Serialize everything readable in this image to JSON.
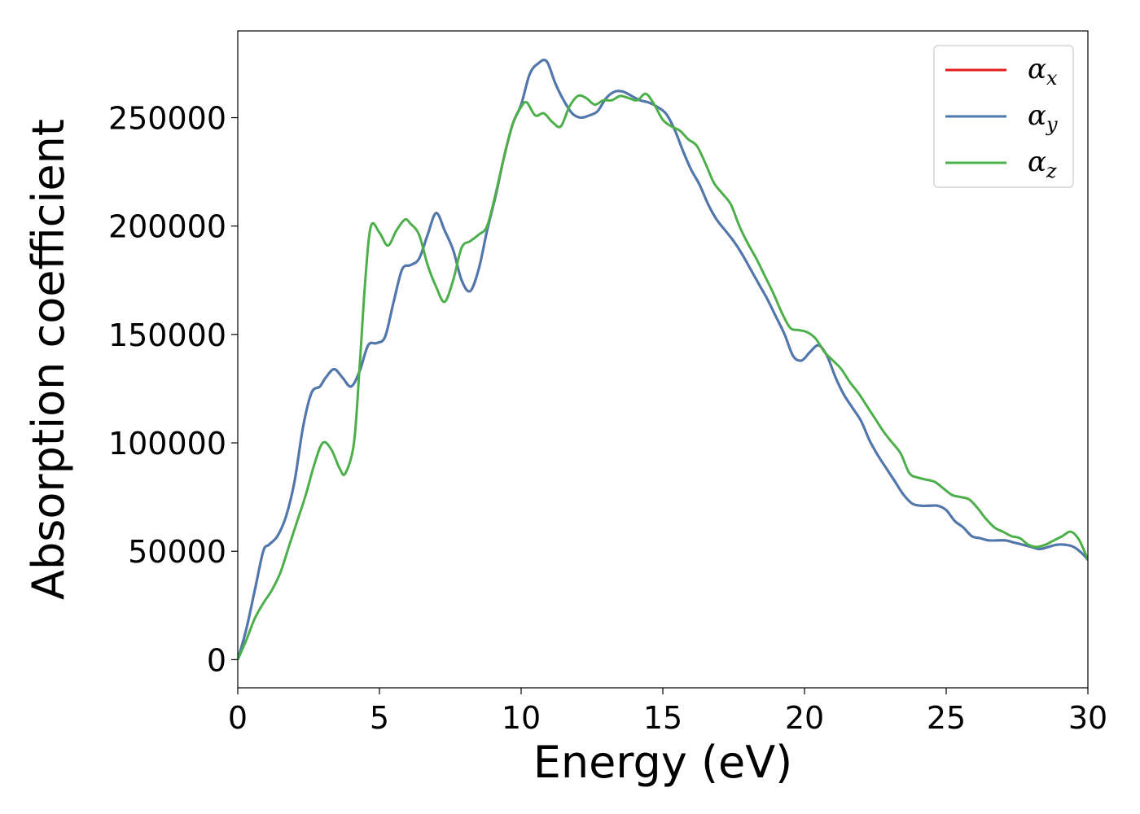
{
  "chart_data": {
    "type": "line",
    "title": "",
    "xlabel": "Energy (eV)",
    "ylabel": "Absorption coefficient",
    "xlim": [
      0,
      30
    ],
    "ylim": [
      -13000,
      290000
    ],
    "xticks": [
      0,
      5,
      10,
      15,
      20,
      25,
      30
    ],
    "yticks": [
      0,
      50000,
      100000,
      150000,
      200000,
      250000
    ],
    "grid": false,
    "legend_position": "top-right",
    "series": [
      {
        "name": "α",
        "subscript": "x",
        "color": "#e41a1c",
        "x": [
          0,
          0.3,
          0.6,
          0.9,
          1.1,
          1.4,
          1.7,
          2.0,
          2.3,
          2.6,
          2.9,
          3.1,
          3.4,
          3.7,
          4.0,
          4.3,
          4.6,
          4.9,
          5.2,
          5.5,
          5.8,
          6.1,
          6.4,
          6.7,
          7.0,
          7.3,
          7.6,
          7.9,
          8.2,
          8.5,
          8.8,
          9.1,
          9.4,
          9.7,
          10.0,
          10.3,
          10.6,
          10.9,
          11.2,
          11.5,
          11.8,
          12.1,
          12.4,
          12.7,
          13.0,
          13.3,
          13.6,
          13.9,
          14.2,
          14.5,
          14.8,
          15.1,
          15.4,
          15.7,
          16.0,
          16.3,
          16.6,
          16.9,
          17.2,
          17.5,
          17.8,
          18.1,
          18.4,
          18.7,
          19.0,
          19.3,
          19.6,
          19.9,
          20.2,
          20.5,
          20.8,
          21.1,
          21.4,
          21.7,
          22.0,
          22.3,
          22.6,
          22.9,
          23.2,
          23.5,
          23.8,
          24.1,
          24.4,
          24.7,
          25.0,
          25.3,
          25.6,
          25.9,
          26.2,
          26.5,
          26.8,
          27.1,
          27.4,
          27.7,
          28.0,
          28.3,
          28.6,
          28.9,
          29.2,
          29.5,
          29.8,
          30.0
        ],
        "y": [
          0,
          14000,
          32000,
          50000,
          53000,
          57000,
          66000,
          82000,
          107000,
          123000,
          126000,
          130000,
          134000,
          130000,
          126000,
          133000,
          145000,
          146000,
          149000,
          165000,
          180000,
          182000,
          185000,
          196000,
          206000,
          198000,
          189000,
          175000,
          170000,
          180000,
          198000,
          214000,
          232000,
          247000,
          256000,
          270000,
          275000,
          276000,
          266000,
          258000,
          252000,
          250000,
          251000,
          253000,
          259000,
          262000,
          262000,
          260000,
          258000,
          257000,
          255000,
          252000,
          245000,
          235000,
          226000,
          219000,
          210000,
          203000,
          198000,
          193000,
          187000,
          180000,
          173000,
          166000,
          158000,
          150000,
          140000,
          138000,
          142000,
          145000,
          140000,
          130000,
          122000,
          116000,
          110000,
          101000,
          94000,
          88000,
          82000,
          76000,
          72000,
          71000,
          71000,
          71000,
          69000,
          64000,
          61000,
          57000,
          56000,
          55000,
          55000,
          55000,
          54000,
          53000,
          52000,
          51000,
          52000,
          53000,
          53000,
          52000,
          49000,
          46000
        ]
      },
      {
        "name": "α",
        "subscript": "y",
        "color": "#4a7ab0",
        "x": [
          0,
          0.3,
          0.6,
          0.9,
          1.1,
          1.4,
          1.7,
          2.0,
          2.3,
          2.6,
          2.9,
          3.1,
          3.4,
          3.7,
          4.0,
          4.3,
          4.6,
          4.9,
          5.2,
          5.5,
          5.8,
          6.1,
          6.4,
          6.7,
          7.0,
          7.3,
          7.6,
          7.9,
          8.2,
          8.5,
          8.8,
          9.1,
          9.4,
          9.7,
          10.0,
          10.3,
          10.6,
          10.9,
          11.2,
          11.5,
          11.8,
          12.1,
          12.4,
          12.7,
          13.0,
          13.3,
          13.6,
          13.9,
          14.2,
          14.5,
          14.8,
          15.1,
          15.4,
          15.7,
          16.0,
          16.3,
          16.6,
          16.9,
          17.2,
          17.5,
          17.8,
          18.1,
          18.4,
          18.7,
          19.0,
          19.3,
          19.6,
          19.9,
          20.2,
          20.5,
          20.8,
          21.1,
          21.4,
          21.7,
          22.0,
          22.3,
          22.6,
          22.9,
          23.2,
          23.5,
          23.8,
          24.1,
          24.4,
          24.7,
          25.0,
          25.3,
          25.6,
          25.9,
          26.2,
          26.5,
          26.8,
          27.1,
          27.4,
          27.7,
          28.0,
          28.3,
          28.6,
          28.9,
          29.2,
          29.5,
          29.8,
          30.0
        ],
        "y": [
          0,
          14000,
          32000,
          50000,
          53000,
          57000,
          66000,
          82000,
          107000,
          123000,
          126000,
          130000,
          134000,
          130000,
          126000,
          133000,
          145000,
          146000,
          149000,
          165000,
          180000,
          182000,
          185000,
          196000,
          206000,
          198000,
          189000,
          175000,
          170000,
          180000,
          198000,
          214000,
          232000,
          247000,
          256000,
          270000,
          275000,
          276000,
          266000,
          258000,
          252000,
          250000,
          251000,
          253000,
          259000,
          262000,
          262000,
          260000,
          258000,
          257000,
          255000,
          252000,
          245000,
          235000,
          226000,
          219000,
          210000,
          203000,
          198000,
          193000,
          187000,
          180000,
          173000,
          166000,
          158000,
          150000,
          140000,
          138000,
          142000,
          145000,
          140000,
          130000,
          122000,
          116000,
          110000,
          101000,
          94000,
          88000,
          82000,
          76000,
          72000,
          71000,
          71000,
          71000,
          69000,
          64000,
          61000,
          57000,
          56000,
          55000,
          55000,
          55000,
          54000,
          53000,
          52000,
          51000,
          52000,
          53000,
          53000,
          52000,
          49000,
          46000
        ]
      },
      {
        "name": "α",
        "subscript": "z",
        "color": "#4daf4a",
        "x": [
          0,
          0.3,
          0.6,
          0.9,
          1.2,
          1.5,
          1.8,
          2.1,
          2.4,
          2.7,
          3.0,
          3.3,
          3.6,
          3.8,
          4.1,
          4.3,
          4.5,
          4.7,
          5.0,
          5.3,
          5.6,
          5.9,
          6.1,
          6.4,
          6.7,
          7.0,
          7.3,
          7.6,
          7.9,
          8.2,
          8.5,
          8.8,
          9.1,
          9.4,
          9.7,
          10.0,
          10.2,
          10.5,
          10.8,
          11.1,
          11.4,
          11.7,
          12.0,
          12.3,
          12.6,
          12.9,
          13.2,
          13.5,
          13.8,
          14.1,
          14.4,
          14.7,
          15.0,
          15.3,
          15.6,
          15.9,
          16.2,
          16.5,
          16.8,
          17.1,
          17.4,
          17.7,
          18.0,
          18.3,
          18.6,
          18.9,
          19.2,
          19.5,
          19.8,
          20.1,
          20.4,
          20.7,
          21.0,
          21.3,
          21.6,
          21.9,
          22.2,
          22.5,
          22.8,
          23.1,
          23.4,
          23.7,
          24.0,
          24.3,
          24.6,
          24.9,
          25.2,
          25.5,
          25.8,
          26.1,
          26.4,
          26.7,
          27.0,
          27.3,
          27.6,
          27.9,
          28.2,
          28.5,
          28.8,
          29.1,
          29.4,
          29.7,
          30.0
        ],
        "y": [
          0,
          9000,
          19000,
          26000,
          32000,
          40000,
          52000,
          64000,
          76000,
          90000,
          100000,
          97000,
          88000,
          86000,
          100000,
          135000,
          175000,
          200000,
          197000,
          191000,
          198000,
          203000,
          201000,
          196000,
          182000,
          172000,
          165000,
          175000,
          190000,
          193000,
          196000,
          200000,
          215000,
          232000,
          247000,
          255000,
          257000,
          251000,
          252000,
          248000,
          246000,
          255000,
          260000,
          259000,
          256000,
          258000,
          258000,
          260000,
          259000,
          258000,
          261000,
          256000,
          249000,
          246000,
          244000,
          240000,
          237000,
          229000,
          220000,
          215000,
          210000,
          200000,
          192000,
          185000,
          177000,
          169000,
          160000,
          153000,
          152000,
          151000,
          148000,
          142000,
          138000,
          134000,
          128000,
          123000,
          117000,
          111000,
          105000,
          100000,
          95000,
          86000,
          84000,
          83000,
          82000,
          79000,
          76000,
          75000,
          74000,
          70000,
          65000,
          61000,
          59000,
          57000,
          56000,
          53000,
          52000,
          53000,
          55000,
          57000,
          59000,
          55000,
          46000
        ]
      }
    ]
  }
}
